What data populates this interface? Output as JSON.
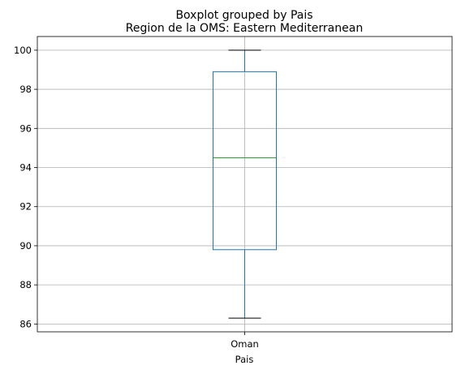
{
  "chart_data": {
    "type": "boxplot",
    "suptitle": "Boxplot grouped by Pais",
    "title": "Region de la OMS: Eastern Mediterranean",
    "xlabel": "Pais",
    "ylabel": "",
    "categories": [
      "Oman"
    ],
    "boxes": [
      {
        "category": "Oman",
        "whisker_low": 86.3,
        "q1": 89.8,
        "median": 94.5,
        "q3": 98.9,
        "whisker_high": 100.0
      }
    ],
    "yticks": [
      86,
      88,
      90,
      92,
      94,
      96,
      98,
      100
    ],
    "ylim": [
      85.6,
      100.7
    ],
    "grid": true,
    "colors": {
      "box": "#1f77b4",
      "median": "#2ca02c",
      "cap": "#000000",
      "grid": "#b0b0b0"
    }
  }
}
